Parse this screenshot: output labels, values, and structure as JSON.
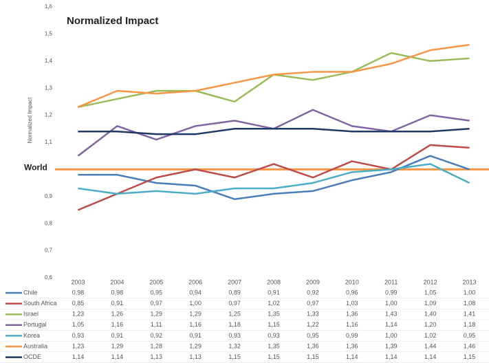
{
  "chart_data": {
    "type": "line",
    "title": "Normalized Impact",
    "y_label": "Normalized Impact",
    "categories": [
      "2003",
      "2004",
      "2005",
      "2006",
      "2007",
      "2008",
      "2009",
      "2010",
      "2011",
      "2012",
      "2013"
    ],
    "ylim": [
      0.6,
      1.6
    ],
    "yticks": [
      {
        "value": 0.6,
        "label": "0,6"
      },
      {
        "value": 0.7,
        "label": "0,7"
      },
      {
        "value": 0.8,
        "label": "0,8"
      },
      {
        "value": 0.9,
        "label": "0,9"
      },
      {
        "value": 1.1,
        "label": "1,1"
      },
      {
        "value": 1.2,
        "label": "1,2"
      },
      {
        "value": 1.3,
        "label": "1,3"
      },
      {
        "value": 1.4,
        "label": "1,4"
      },
      {
        "value": 1.5,
        "label": "1,5"
      },
      {
        "value": 1.6,
        "label": "1,6"
      }
    ],
    "world": {
      "label": "World",
      "value": 1,
      "color": "#f79646"
    },
    "series": [
      {
        "name": "Chile",
        "color": "#4a7ebb",
        "values": [
          0.98,
          0.98,
          0.95,
          0.94,
          0.89,
          0.91,
          0.92,
          0.96,
          0.99,
          1.05,
          1.0
        ],
        "value_labels": [
          "0,98",
          "0,98",
          "0,95",
          "0,94",
          "0,89",
          "0,91",
          "0,92",
          "0,96",
          "0,99",
          "1,05",
          "1,00"
        ]
      },
      {
        "name": "South Africa",
        "color": "#be4b48",
        "values": [
          0.85,
          0.91,
          0.97,
          1.0,
          0.97,
          1.02,
          0.97,
          1.03,
          1.0,
          1.09,
          1.08
        ],
        "value_labels": [
          "0,85",
          "0,91",
          "0,97",
          "1,00",
          "0,97",
          "1,02",
          "0,97",
          "1,03",
          "1,00",
          "1,09",
          "1,08"
        ]
      },
      {
        "name": "Israel",
        "color": "#9bbb59",
        "values": [
          1.23,
          1.26,
          1.29,
          1.29,
          1.25,
          1.35,
          1.33,
          1.36,
          1.43,
          1.4,
          1.41
        ],
        "value_labels": [
          "1,23",
          "1,26",
          "1,29",
          "1,29",
          "1,25",
          "1,35",
          "1,33",
          "1,36",
          "1,43",
          "1,40",
          "1,41"
        ]
      },
      {
        "name": "Portugal",
        "color": "#8064a2",
        "values": [
          1.05,
          1.16,
          1.11,
          1.16,
          1.18,
          1.15,
          1.22,
          1.16,
          1.14,
          1.2,
          1.18
        ],
        "value_labels": [
          "1,05",
          "1,16",
          "1,11",
          "1,16",
          "1,18",
          "1,15",
          "1,22",
          "1,16",
          "1,14",
          "1,20",
          "1,18"
        ]
      },
      {
        "name": "Korea",
        "color": "#4bacc6",
        "values": [
          0.93,
          0.91,
          0.92,
          0.91,
          0.93,
          0.93,
          0.95,
          0.99,
          1.0,
          1.02,
          0.95
        ],
        "value_labels": [
          "0,93",
          "0,91",
          "0,92",
          "0,91",
          "0,93",
          "0,93",
          "0,95",
          "0,99",
          "1,00",
          "1,02",
          "0,95"
        ]
      },
      {
        "name": "Australia",
        "color": "#f79646",
        "values": [
          1.23,
          1.29,
          1.28,
          1.29,
          1.32,
          1.35,
          1.36,
          1.36,
          1.39,
          1.44,
          1.46
        ],
        "value_labels": [
          "1,23",
          "1,29",
          "1,28",
          "1,29",
          "1,32",
          "1,35",
          "1,36",
          "1,36",
          "1,39",
          "1,44",
          "1,46"
        ]
      },
      {
        "name": "OCDE",
        "color": "#1f3864",
        "values": [
          1.14,
          1.14,
          1.13,
          1.13,
          1.15,
          1.15,
          1.15,
          1.14,
          1.14,
          1.14,
          1.15
        ],
        "value_labels": [
          "1,14",
          "1,14",
          "1,13",
          "1,13",
          "1,15",
          "1,15",
          "1,15",
          "1,14",
          "1,14",
          "1,14",
          "1,15"
        ]
      }
    ]
  }
}
